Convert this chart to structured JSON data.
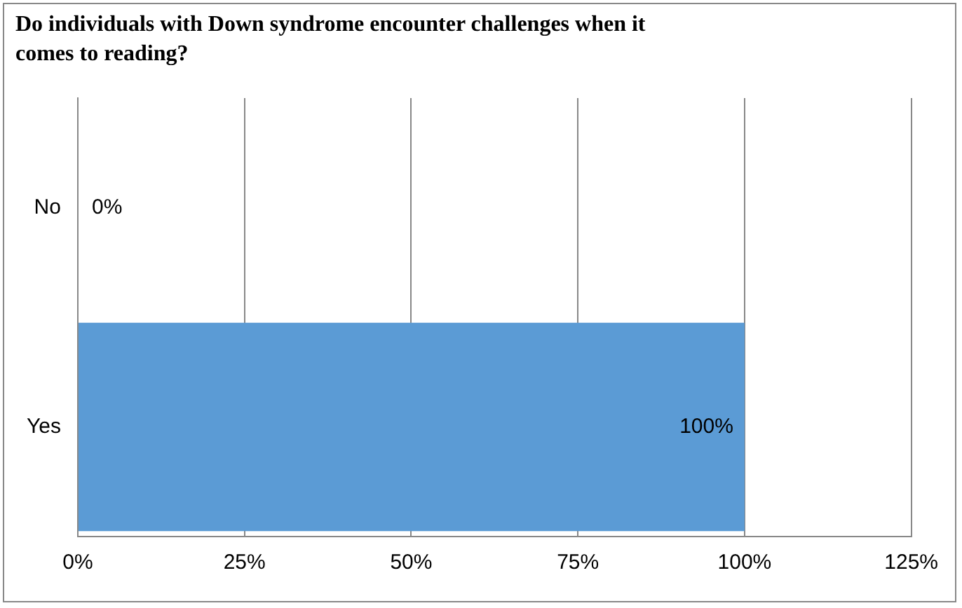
{
  "chart_data": {
    "type": "bar",
    "orientation": "horizontal",
    "title": "Do individuals with Down syndrome encounter challenges when it comes to reading?",
    "categories": [
      "No",
      "Yes"
    ],
    "values": [
      0,
      100
    ],
    "color": "#5b9bd5",
    "value_labels": [
      "0%",
      "100%"
    ],
    "xlim": [
      0,
      125
    ],
    "xticks": [
      {
        "value": 0,
        "label": "0%"
      },
      {
        "value": 25,
        "label": "25%"
      },
      {
        "value": 50,
        "label": "50%"
      },
      {
        "value": 75,
        "label": "75%"
      },
      {
        "value": 100,
        "label": "100%"
      },
      {
        "value": 125,
        "label": "125%"
      }
    ],
    "grid": "x"
  }
}
